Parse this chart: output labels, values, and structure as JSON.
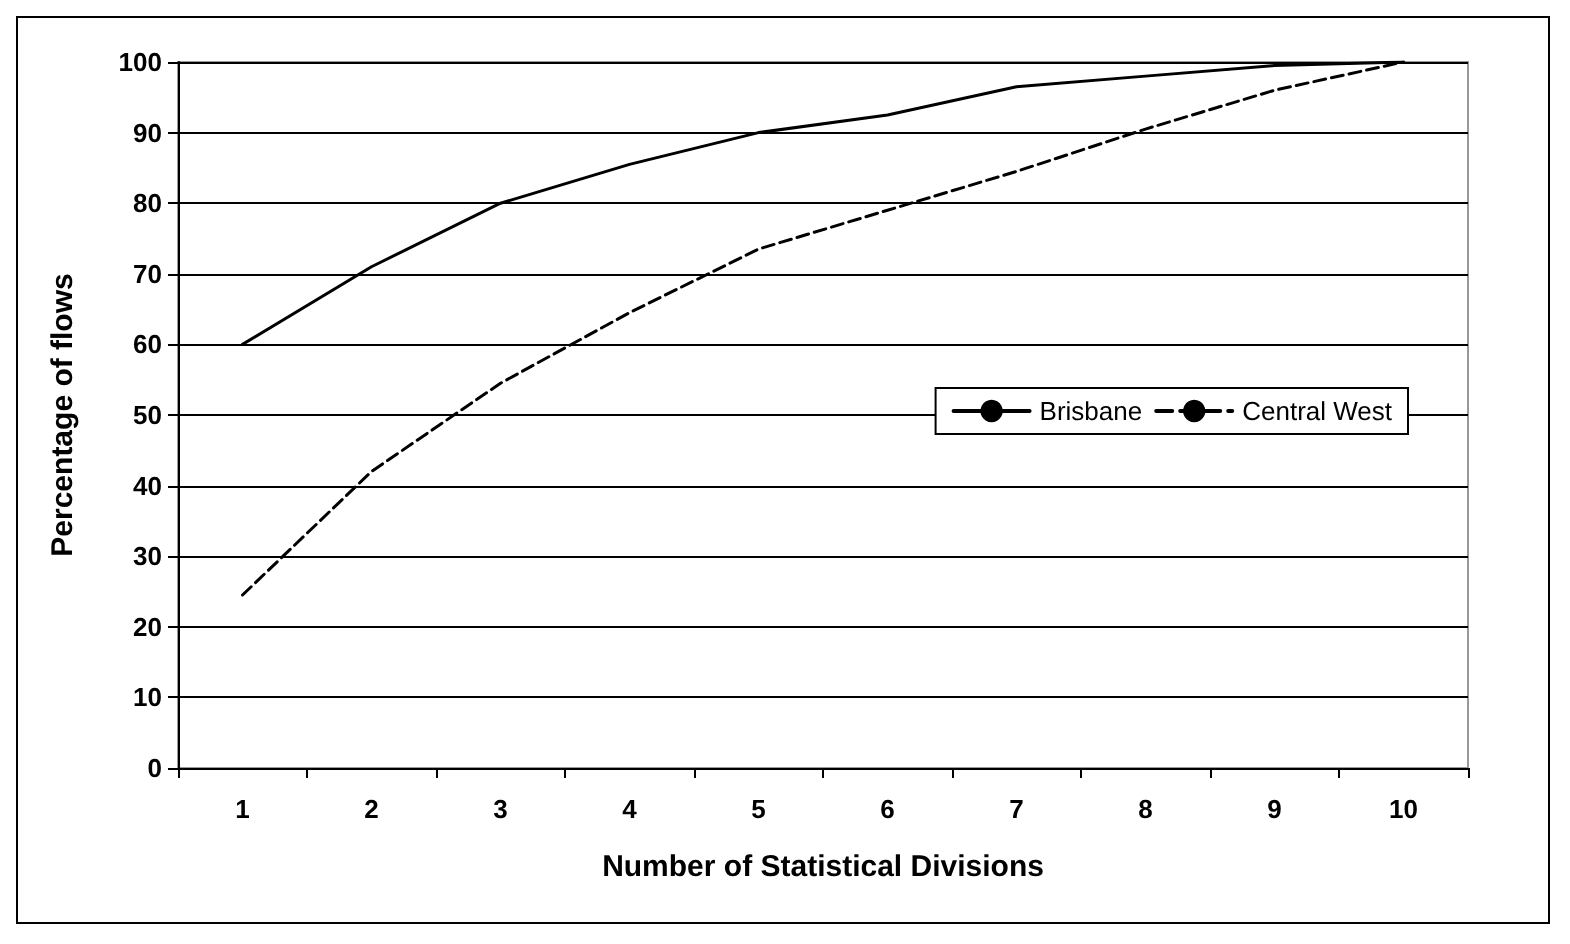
{
  "chart_data": {
    "type": "line",
    "xlabel": "Number of Statistical Divisions",
    "ylabel": "Percentage of flows",
    "categories": [
      "1",
      "2",
      "3",
      "4",
      "5",
      "6",
      "7",
      "8",
      "9",
      "10"
    ],
    "series": [
      {
        "name": "Brisbane",
        "color": "#000000",
        "line_style": "solid",
        "values": [
          60,
          71,
          80,
          85.5,
          90,
          92.5,
          96.5,
          98,
          99.5,
          100
        ]
      },
      {
        "name": "Central West",
        "color": "#000000",
        "line_style": "dashed",
        "values": [
          24.5,
          42,
          54.5,
          64.5,
          73.5,
          79,
          84.5,
          90.5,
          96,
          100
        ]
      }
    ],
    "ylim": [
      0,
      100
    ],
    "yticks": [
      0,
      10,
      20,
      30,
      40,
      50,
      60,
      70,
      80,
      90,
      100
    ],
    "grid": "y",
    "legend": "right",
    "marker": "none"
  }
}
